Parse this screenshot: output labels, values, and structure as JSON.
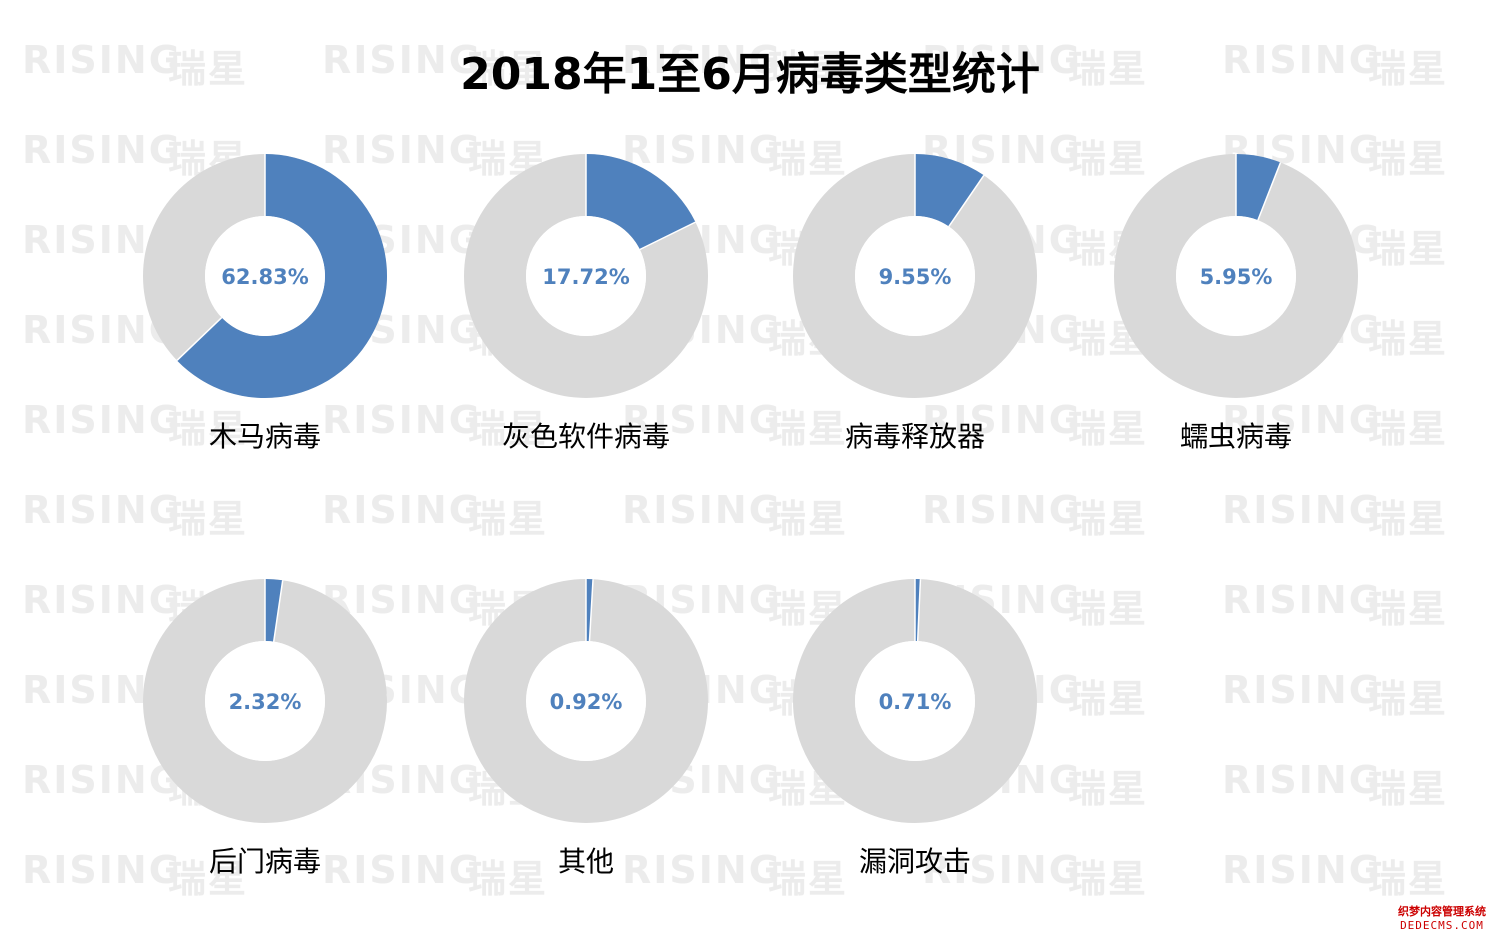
{
  "watermark": {
    "brand_en": "RISING",
    "brand_cn": "瑞星"
  },
  "footer_logo": {
    "line1": "织梦内容管理系统",
    "line2": "DEDECMS.COM"
  },
  "colors": {
    "highlight": "#4f81bd",
    "remainder": "#d9d9d9",
    "percent_text": "#4f81bd",
    "label_text": "#000000"
  },
  "chart_data": {
    "type": "pie",
    "subtype": "donut-small-multiples",
    "title": "2018年1至6月病毒类型统计",
    "series": [
      {
        "name": "木马病毒",
        "value": 62.83,
        "label": "62.83%"
      },
      {
        "name": "灰色软件病毒",
        "value": 17.72,
        "label": "17.72%"
      },
      {
        "name": "病毒释放器",
        "value": 9.55,
        "label": "9.55%"
      },
      {
        "name": "蠕虫病毒",
        "value": 5.95,
        "label": "5.95%"
      },
      {
        "name": "后门病毒",
        "value": 2.32,
        "label": "2.32%"
      },
      {
        "name": "其他",
        "value": 0.92,
        "label": "0.92%"
      },
      {
        "name": "漏洞攻击",
        "value": 0.71,
        "label": "0.71%"
      }
    ]
  }
}
